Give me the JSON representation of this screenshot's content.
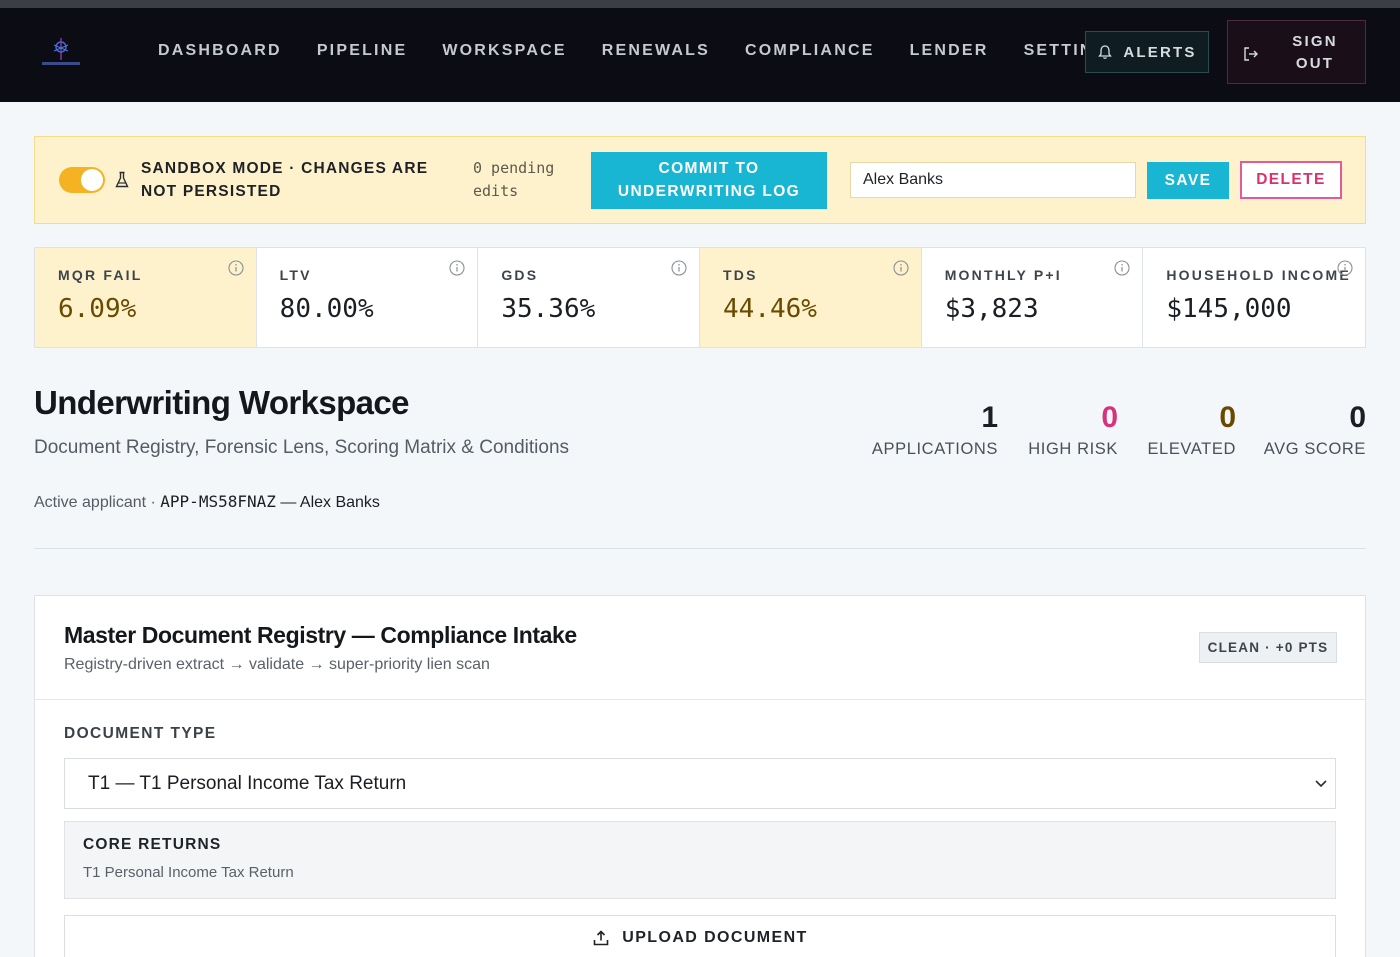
{
  "nav": {
    "links": [
      "DASHBOARD",
      "PIPELINE",
      "WORKSPACE",
      "RENEWALS",
      "COMPLIANCE",
      "LENDER",
      "SETTINGS"
    ],
    "alerts_label": "ALERTS",
    "signout_line1": "SIGN",
    "signout_line2": "OUT"
  },
  "banner": {
    "sandbox_line1": "SANDBOX MODE · CHANGES ARE",
    "sandbox_line2": "NOT PERSISTED",
    "pending_line1": "0 pending",
    "pending_line2": "edits",
    "commit_line1": "COMMIT TO",
    "commit_line2": "UNDERWRITING LOG",
    "name_value": "Alex Banks",
    "save_label": "SAVE",
    "delete_label": "DELETE"
  },
  "metrics": [
    {
      "label": "MQR FAIL",
      "value": "6.09%",
      "status": "warn"
    },
    {
      "label": "LTV",
      "value": "80.00%",
      "status": "normal"
    },
    {
      "label": "GDS",
      "value": "35.36%",
      "status": "normal"
    },
    {
      "label": "TDS",
      "value": "44.46%",
      "status": "warn"
    },
    {
      "label": "MONTHLY P+I",
      "value": "$3,823",
      "status": "normal"
    },
    {
      "label": "HOUSEHOLD INCOME",
      "value": "$145,000",
      "status": "normal"
    }
  ],
  "header": {
    "title": "Underwriting Workspace",
    "subtitle": "Document Registry, Forensic Lens, Scoring Matrix & Conditions",
    "active_prefix": "Active applicant · ",
    "active_id": "APP-MS58FNAZ",
    "active_sep": " — ",
    "active_name": "Alex Banks"
  },
  "stats": [
    {
      "num": "1",
      "label": "APPLICATIONS",
      "color": "#1b1f24"
    },
    {
      "num": "0",
      "label": "HIGH RISK",
      "color": "#d6337f"
    },
    {
      "num": "0",
      "label": "ELEVATED",
      "color": "#6a4a00"
    },
    {
      "num": "0",
      "label": "AVG SCORE",
      "color": "#1b1f24"
    }
  ],
  "registry": {
    "title": "Master Document Registry — Compliance Intake",
    "subtitle": "Registry-driven extract → validate → super-priority lien scan",
    "badge": "CLEAN · +0 PTS",
    "doc_type_label": "DOCUMENT TYPE",
    "doc_type_value": "T1 — T1 Personal Income Tax Return",
    "core_title": "CORE RETURNS",
    "core_item": "T1 Personal Income Tax Return",
    "upload_label": "UPLOAD DOCUMENT"
  },
  "colors": {
    "accent": "#19b6d3",
    "warn_bg": "#fdf2cc",
    "danger": "#d6336f",
    "nav_bg": "#0b0c14"
  },
  "icons": {
    "logo": "brand-logo-icon",
    "alerts": "bell-icon",
    "signout": "sign-out-icon",
    "sandbox": "flask-icon",
    "info": "info-icon",
    "select": "chevron-down-icon",
    "upload": "upload-icon"
  }
}
